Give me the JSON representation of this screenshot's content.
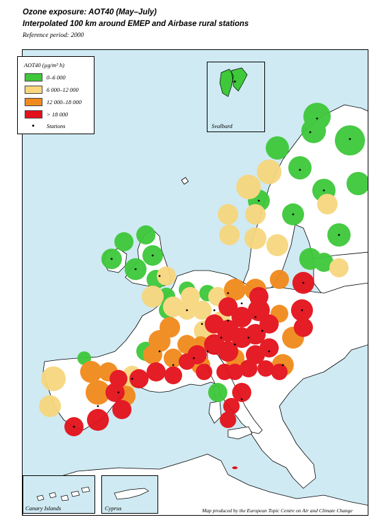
{
  "title_line1": "Ozone exposure: AOT40 (May–July)",
  "title_line2": "Interpolated 100 km around EMEP and Airbase rural stations",
  "reference": "Reference period: 2000",
  "legend": {
    "title": "AOT40 (µg/m³ h)",
    "classes": [
      {
        "label": "0–6 000",
        "color": "#3ec83a"
      },
      {
        "label": "6 000–12 000",
        "color": "#f7d67e"
      },
      {
        "label": "12 000–18 000",
        "color": "#f18a1c"
      },
      {
        "label": "> 18 000",
        "color": "#e3111b"
      }
    ],
    "stations_label": "Stations"
  },
  "insets": {
    "svalbard": "Svalbard",
    "canary": "Canary Islands",
    "cyprus": "Cyprus"
  },
  "credit": "Map produced by the European Topic Centre on Air and Climate Change",
  "colors": {
    "sea": "#cfeaf3",
    "land": "#ffffff",
    "coast": "#000000"
  }
}
